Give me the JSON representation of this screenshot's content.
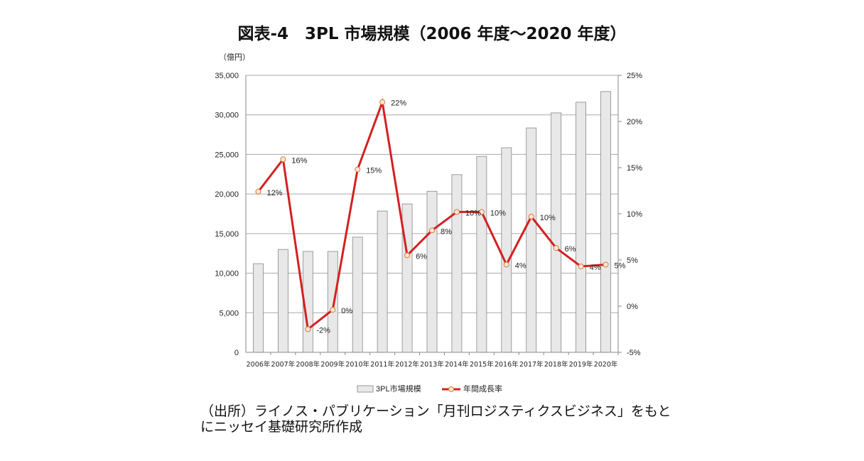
{
  "chart_data": {
    "type": "bar+line",
    "title": "図表-4　3PL 市場規模（2006 年度～2020 年度）",
    "y_unit_label": "（億円）",
    "categories": [
      "2006年",
      "2007年",
      "2008年",
      "2009年",
      "2010年",
      "2011年",
      "2012年",
      "2013年",
      "2014年",
      "2015年",
      "2016年",
      "2017年",
      "2018年",
      "2019年",
      "2020年"
    ],
    "series": [
      {
        "name": "3PL市場規模",
        "type": "bar",
        "axis": "left",
        "color": "#e8e8e8",
        "values": [
          11200,
          13000,
          12750,
          12750,
          14550,
          17850,
          18750,
          20350,
          22450,
          24750,
          25850,
          28350,
          30250,
          31600,
          32950
        ]
      },
      {
        "name": "年間成長率",
        "type": "line",
        "axis": "right",
        "color": "#d42020",
        "values": [
          12.4,
          15.9,
          -2.5,
          -0.4,
          14.8,
          22.1,
          5.5,
          8.2,
          10.2,
          10.2,
          4.5,
          9.7,
          6.3,
          4.3,
          4.5
        ],
        "labels": [
          "12%",
          "16%",
          "-2%",
          "0%",
          "15%",
          "22%",
          "6%",
          "8%",
          "10%",
          "10%",
          "4%",
          "10%",
          "6%",
          "4%",
          "5%"
        ]
      }
    ],
    "left_axis": {
      "ylim": [
        0,
        35000
      ],
      "ticks": [
        "0",
        "5,000",
        "10,000",
        "15,000",
        "20,000",
        "25,000",
        "30,000",
        "35,000"
      ]
    },
    "right_axis": {
      "ylim": [
        -5,
        25
      ],
      "ticks": [
        "-5%",
        "0%",
        "5%",
        "10%",
        "15%",
        "20%",
        "25%"
      ]
    },
    "grid": true,
    "legend": "bottom"
  },
  "source_note": "（出所）ライノス・パブリケーション「月刊ロジスティクスビジネス」をもとにニッセイ基礎研究所作成"
}
